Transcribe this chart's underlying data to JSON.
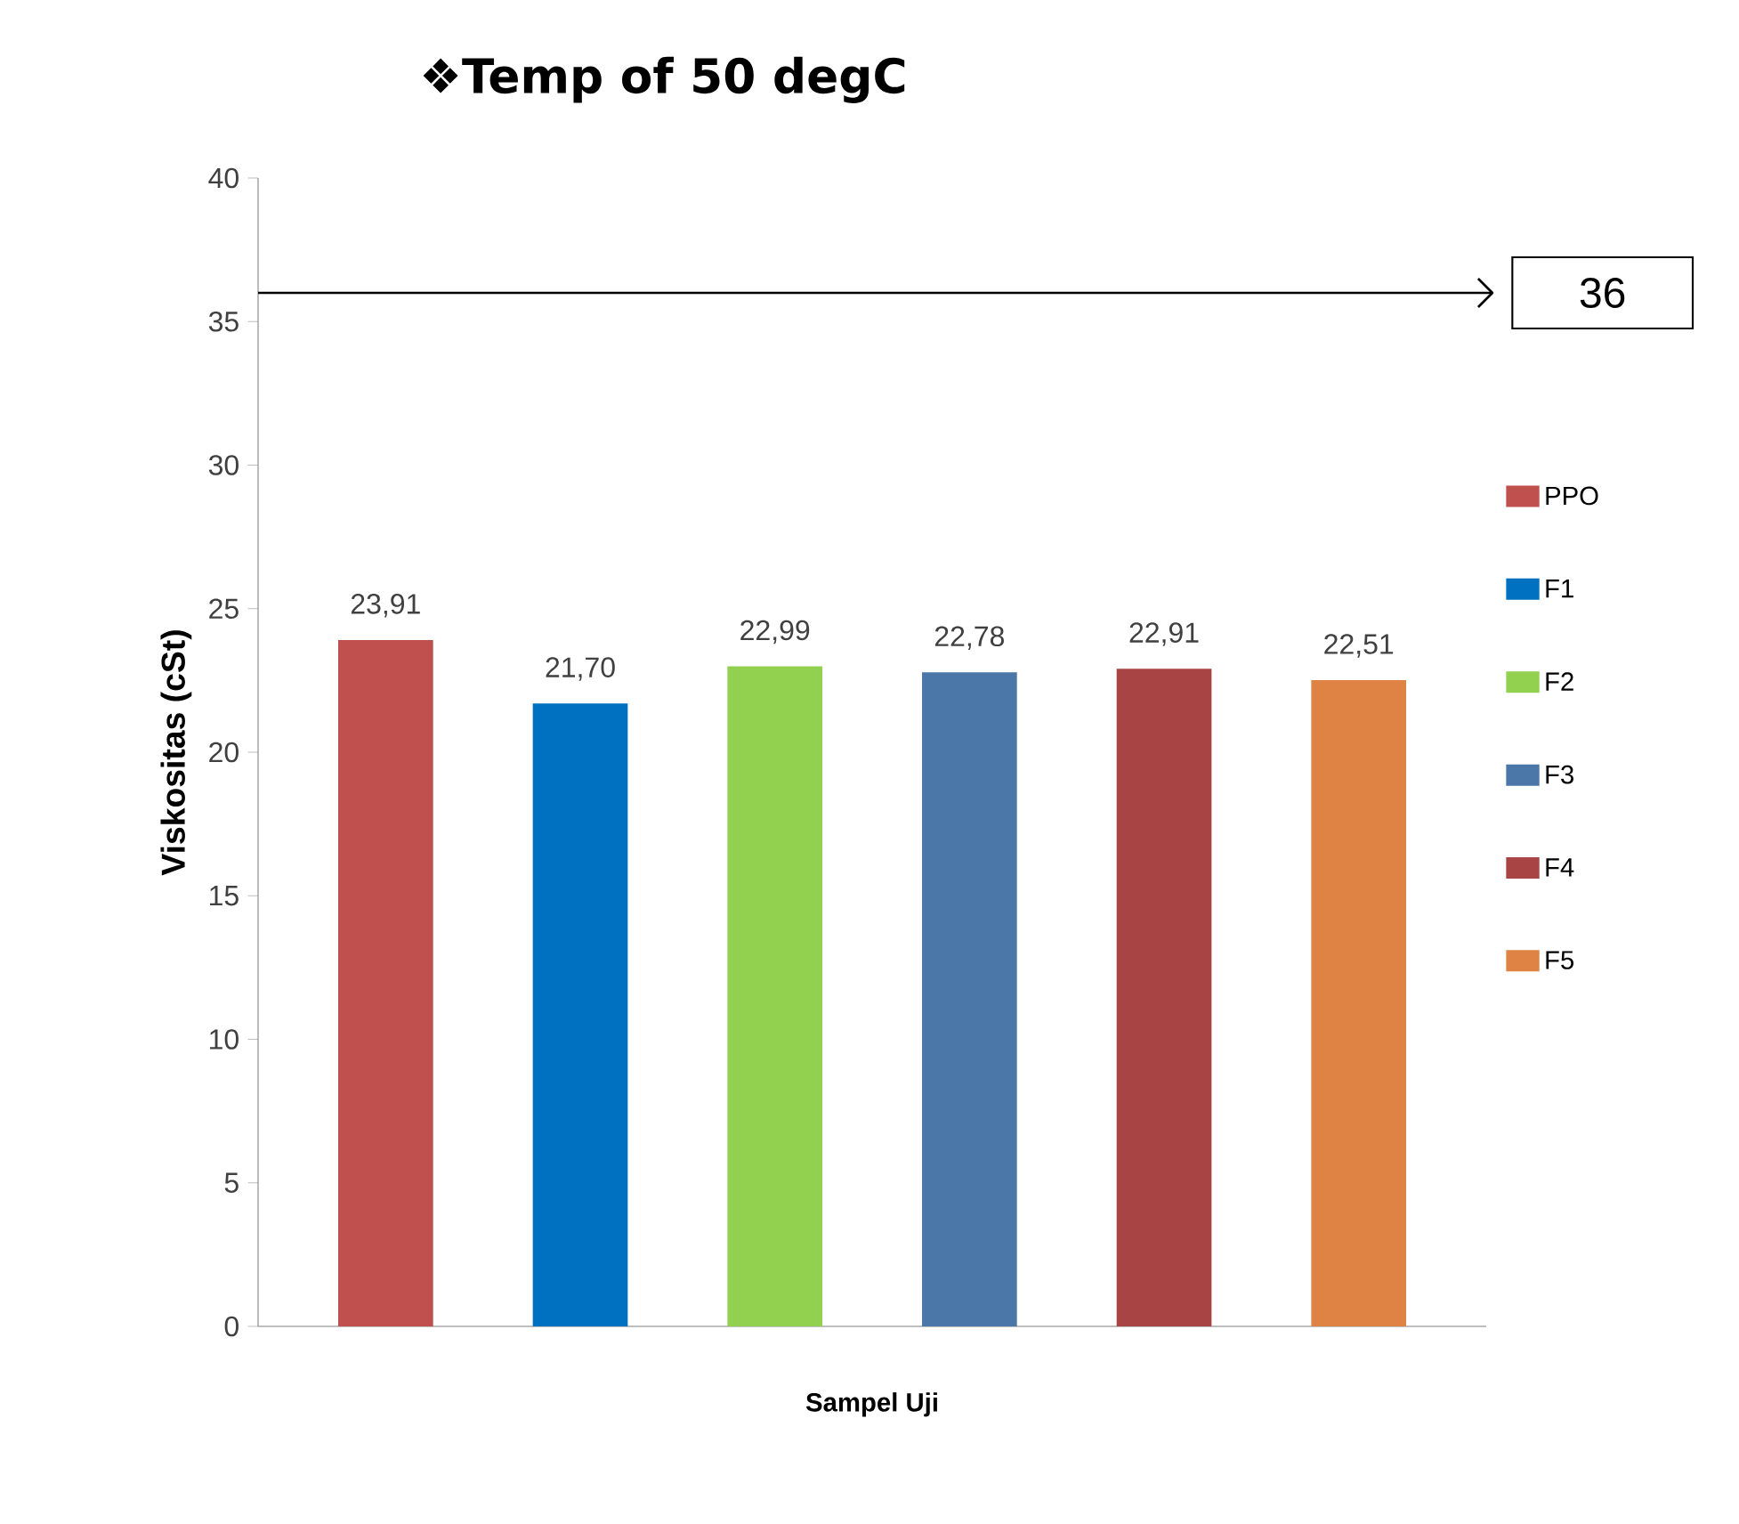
{
  "chart_data": {
    "type": "bar",
    "title": "❖Temp of 50 degC",
    "xlabel": "Sampel Uji",
    "ylabel": "Viskositas (cSt)",
    "categories": [
      null
    ],
    "series": [
      {
        "name": "PPO",
        "color": "#c0504d",
        "values": [
          23.91
        ],
        "value_labels": [
          "23,91"
        ]
      },
      {
        "name": "F1",
        "color": "#0070c0",
        "values": [
          21.7
        ],
        "value_labels": [
          "21,70"
        ]
      },
      {
        "name": "F2",
        "color": "#92d050",
        "values": [
          22.99
        ],
        "value_labels": [
          "22,99"
        ]
      },
      {
        "name": "F3",
        "color": "#4a76a8",
        "values": [
          22.78
        ],
        "value_labels": [
          "22,78"
        ]
      },
      {
        "name": "F4",
        "color": "#a84444",
        "values": [
          22.91
        ],
        "value_labels": [
          "22,91"
        ]
      },
      {
        "name": "F5",
        "color": "#de8344",
        "values": [
          22.51
        ],
        "value_labels": [
          "22,51"
        ]
      }
    ],
    "ylim": [
      0,
      40
    ],
    "yticks": [
      0,
      5,
      10,
      15,
      20,
      25,
      30,
      35,
      40
    ],
    "ref_lines": [
      {
        "axis": "y",
        "value": 36,
        "label": "36"
      }
    ],
    "legend": "right",
    "grid": false
  }
}
